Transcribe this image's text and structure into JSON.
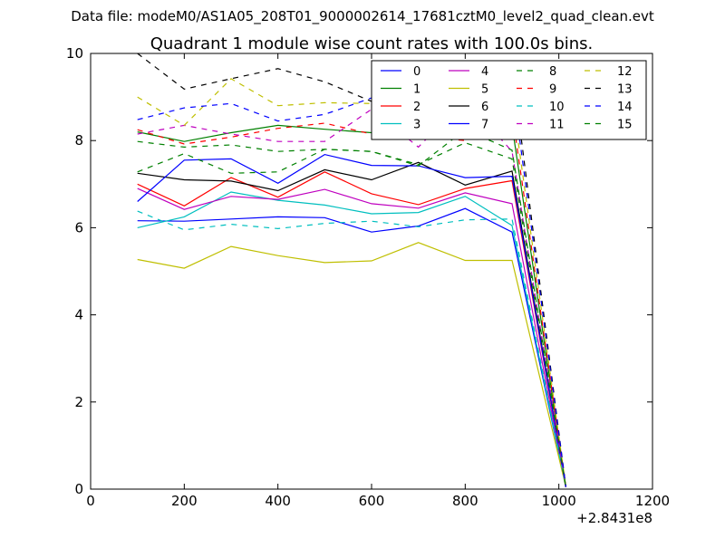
{
  "supertitle": "Data file: modeM0/AS1A05_208T01_9000002614_17681cztM0_level2_quad_clean.evt",
  "chart_data": {
    "type": "line",
    "title": "Quadrant 1 module wise count rates with 100.0s bins.",
    "xlabel": "",
    "ylabel": "",
    "xlim": [
      0,
      1200
    ],
    "ylim": [
      0,
      10
    ],
    "xticks": [
      0,
      200,
      400,
      600,
      800,
      1000,
      1200
    ],
    "yticks": [
      0,
      2,
      4,
      6,
      8,
      10
    ],
    "xoffset_label": "+2.8431e8",
    "grid": false,
    "legend_position": "top-right",
    "legend_columns": 4,
    "x": [
      100,
      200,
      300,
      400,
      500,
      600,
      700,
      800,
      900,
      1015
    ],
    "series": [
      {
        "name": "0",
        "color": "#0000ff",
        "style": "solid",
        "values": [
          6.16,
          6.15,
          6.2,
          6.25,
          6.23,
          5.9,
          6.04,
          6.44,
          5.9,
          0.05
        ]
      },
      {
        "name": "1",
        "color": "#008000",
        "style": "solid",
        "values": [
          8.2,
          7.98,
          8.18,
          8.35,
          8.26,
          8.18,
          8.3,
          8.47,
          8.35,
          0.05
        ]
      },
      {
        "name": "2",
        "color": "#ff0000",
        "style": "solid",
        "values": [
          7.0,
          6.5,
          7.15,
          6.7,
          7.28,
          6.78,
          6.53,
          6.9,
          7.08,
          0.05
        ]
      },
      {
        "name": "3",
        "color": "#00bfbf",
        "style": "solid",
        "values": [
          6.0,
          6.25,
          6.82,
          6.63,
          6.52,
          6.32,
          6.35,
          6.72,
          6.05,
          0.05
        ]
      },
      {
        "name": "4",
        "color": "#bf00bf",
        "style": "solid",
        "values": [
          6.9,
          6.42,
          6.72,
          6.65,
          6.88,
          6.55,
          6.45,
          6.8,
          6.55,
          0.05
        ]
      },
      {
        "name": "5",
        "color": "#bfbf00",
        "style": "solid",
        "values": [
          5.27,
          5.07,
          5.57,
          5.36,
          5.2,
          5.24,
          5.66,
          5.25,
          5.25,
          0.05
        ]
      },
      {
        "name": "6",
        "color": "#000000",
        "style": "solid",
        "values": [
          7.25,
          7.1,
          7.07,
          6.85,
          7.33,
          7.1,
          7.5,
          6.98,
          7.3,
          0.05
        ]
      },
      {
        "name": "7",
        "color": "#0000ff",
        "style": "solid",
        "values": [
          6.6,
          7.55,
          7.58,
          7.02,
          7.68,
          7.43,
          7.42,
          7.15,
          7.18,
          0.05
        ]
      },
      {
        "name": "8",
        "color": "#008000",
        "style": "dashed",
        "values": [
          7.98,
          7.85,
          7.9,
          7.75,
          7.8,
          7.75,
          7.45,
          7.95,
          7.58,
          0.05
        ]
      },
      {
        "name": "9",
        "color": "#ff0000",
        "style": "dashed",
        "values": [
          8.25,
          7.92,
          8.08,
          8.28,
          8.4,
          8.15,
          8.1,
          8.0,
          8.65,
          0.05
        ]
      },
      {
        "name": "10",
        "color": "#00bfbf",
        "style": "dashed",
        "values": [
          6.38,
          5.95,
          6.08,
          5.98,
          6.1,
          6.15,
          6.02,
          6.18,
          6.2,
          0.05
        ]
      },
      {
        "name": "11",
        "color": "#bf00bf",
        "style": "dashed",
        "values": [
          8.15,
          8.35,
          8.15,
          7.98,
          7.98,
          8.72,
          7.85,
          8.95,
          7.75,
          0.05
        ]
      },
      {
        "name": "12",
        "color": "#bfbf00",
        "style": "dashed",
        "values": [
          9.0,
          8.35,
          9.42,
          8.8,
          8.87,
          8.85,
          9.05,
          8.92,
          9.0,
          0.05
        ]
      },
      {
        "name": "13",
        "color": "#000000",
        "style": "dashed",
        "values": [
          10.0,
          9.18,
          9.42,
          9.65,
          9.35,
          8.9,
          9.62,
          9.82,
          9.7,
          0.05
        ]
      },
      {
        "name": "14",
        "color": "#0000ff",
        "style": "dashed",
        "values": [
          8.48,
          8.75,
          8.85,
          8.45,
          8.6,
          8.98,
          9.2,
          8.95,
          9.35,
          0.05
        ]
      },
      {
        "name": "15",
        "color": "#008000",
        "style": "dashed",
        "values": [
          7.28,
          7.7,
          7.25,
          7.28,
          7.8,
          7.75,
          7.42,
          8.25,
          7.78,
          0.05
        ]
      }
    ]
  }
}
